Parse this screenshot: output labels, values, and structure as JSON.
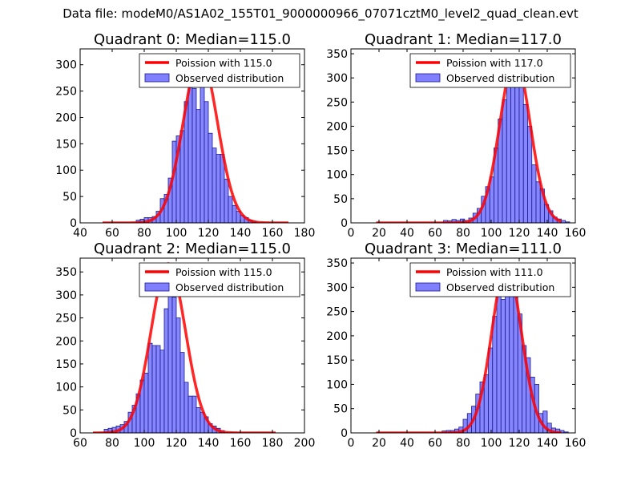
{
  "suptitle": "Data file: modeM0/AS1A02_155T01_9000000966_07071cztM0_level2_quad_clean.evt",
  "colors": {
    "bars": "#7f7fff",
    "bar_edge": "#1b1b8f",
    "poisson": "#ff0000"
  },
  "chart_data": [
    {
      "type": "bar",
      "title": "Quadrant 0: Median=115.0",
      "xlim": [
        40,
        180
      ],
      "ylim": [
        0,
        330
      ],
      "xticks": [
        40,
        60,
        80,
        100,
        120,
        140,
        160,
        180
      ],
      "yticks": [
        0,
        50,
        100,
        150,
        200,
        250,
        300
      ],
      "legend": {
        "placement": "upper-right",
        "line_label": "Poission with 115.0",
        "bar_label": "Observed distribution"
      },
      "bin_width": 2.5,
      "bins_start": [
        75,
        77.5,
        80,
        82.5,
        85,
        87.5,
        90,
        92.5,
        95,
        97.5,
        100,
        102.5,
        105,
        107.5,
        110,
        112.5,
        115,
        117.5,
        120,
        122.5,
        125,
        127.5,
        130,
        132.5,
        135,
        137.5,
        140,
        142.5,
        145,
        147.5
      ],
      "counts": [
        5,
        7,
        10,
        10,
        12,
        22,
        46,
        54,
        85,
        155,
        165,
        175,
        230,
        285,
        255,
        215,
        320,
        230,
        170,
        142,
        130,
        130,
        83,
        50,
        33,
        22,
        14,
        10,
        5,
        3
      ],
      "poisson": {
        "mean": 115.0,
        "peak": 315,
        "sigma": 10.7,
        "x_range": [
          54,
          170
        ]
      }
    },
    {
      "type": "bar",
      "title": "Quadrant 1: Median=117.0",
      "xlim": [
        0,
        160
      ],
      "ylim": [
        0,
        360
      ],
      "xticks": [
        0,
        20,
        40,
        60,
        80,
        100,
        120,
        140,
        160
      ],
      "yticks": [
        0,
        50,
        100,
        150,
        200,
        250,
        300,
        350
      ],
      "legend": {
        "placement": "upper-right",
        "line_label": "Poission with 117.0",
        "bar_label": "Observed distribution"
      },
      "bin_width": 3,
      "bins_start": [
        66,
        69,
        72,
        75,
        78,
        81,
        84,
        87,
        90,
        93,
        96,
        99,
        102,
        105,
        108,
        111,
        114,
        117,
        120,
        123,
        126,
        129,
        132,
        135,
        138,
        141,
        144,
        147,
        150,
        153
      ],
      "counts": [
        5,
        4,
        7,
        5,
        8,
        5,
        10,
        20,
        30,
        55,
        75,
        95,
        155,
        215,
        255,
        330,
        340,
        320,
        300,
        245,
        200,
        120,
        85,
        70,
        38,
        25,
        12,
        8,
        5,
        2
      ],
      "poisson": {
        "mean": 117.0,
        "peak": 340,
        "sigma": 10.8,
        "x_range": [
          18,
          150
        ]
      }
    },
    {
      "type": "bar",
      "title": "Quadrant 2: Median=115.0",
      "xlim": [
        60,
        200
      ],
      "ylim": [
        0,
        380
      ],
      "xticks": [
        60,
        80,
        100,
        120,
        140,
        160,
        180,
        200
      ],
      "yticks": [
        0,
        50,
        100,
        150,
        200,
        250,
        300,
        350
      ],
      "legend": {
        "placement": "upper-right",
        "line_label": "Poission with 115.0",
        "bar_label": "Observed distribution"
      },
      "bin_width": 2.5,
      "bins_start": [
        75,
        77.5,
        80,
        82.5,
        85,
        87.5,
        90,
        92.5,
        95,
        97.5,
        100,
        102.5,
        105,
        107.5,
        110,
        112.5,
        115,
        117.5,
        120,
        122.5,
        125,
        127.5,
        130,
        132.5,
        135,
        137.5,
        140,
        142.5,
        145,
        147.5
      ],
      "counts": [
        8,
        10,
        12,
        15,
        18,
        25,
        45,
        60,
        85,
        115,
        130,
        195,
        190,
        190,
        180,
        270,
        355,
        295,
        250,
        175,
        110,
        80,
        80,
        55,
        45,
        35,
        20,
        15,
        10,
        5
      ],
      "poisson": {
        "mean": 115.0,
        "peak": 368,
        "sigma": 10.7,
        "x_range": [
          68,
          182
        ]
      }
    },
    {
      "type": "bar",
      "title": "Quadrant 3: Median=111.0",
      "xlim": [
        0,
        160
      ],
      "ylim": [
        0,
        360
      ],
      "xticks": [
        0,
        20,
        40,
        60,
        80,
        100,
        120,
        140,
        160
      ],
      "yticks": [
        0,
        50,
        100,
        150,
        200,
        250,
        300,
        350
      ],
      "legend": {
        "placement": "upper-right",
        "line_label": "Poission with 111.0",
        "bar_label": "Observed distribution"
      },
      "bin_width": 3,
      "bins_start": [
        65,
        68,
        71,
        74,
        77,
        80,
        83,
        86,
        89,
        92,
        95,
        98,
        101,
        104,
        107,
        110,
        113,
        116,
        119,
        122,
        125,
        128,
        131,
        134,
        137,
        140,
        143,
        146,
        149,
        152
      ],
      "counts": [
        4,
        5,
        5,
        8,
        12,
        28,
        40,
        55,
        80,
        105,
        120,
        175,
        240,
        310,
        275,
        330,
        300,
        320,
        245,
        180,
        155,
        115,
        100,
        40,
        45,
        20,
        10,
        8,
        5,
        2
      ],
      "poisson": {
        "mean": 111.0,
        "peak": 346,
        "sigma": 10.5,
        "x_range": [
          18,
          150
        ]
      }
    }
  ]
}
